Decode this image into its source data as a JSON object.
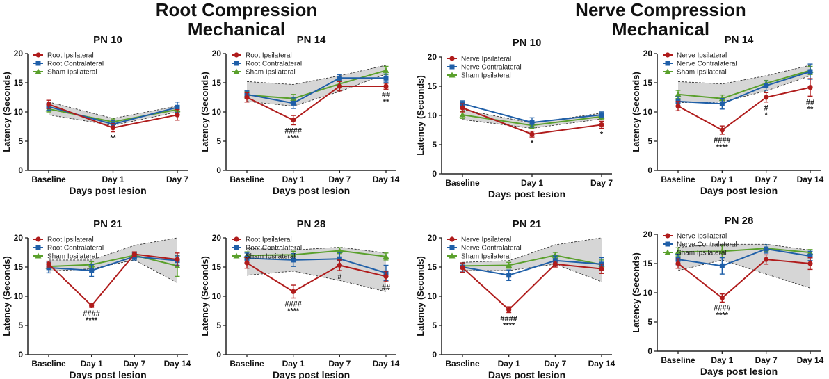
{
  "colors": {
    "root_ipsi": "#b01c1c",
    "contra": "#1f5fa8",
    "sham": "#5aa02c",
    "band": "#d6d6d6",
    "axis": "#222222"
  },
  "section_titles": {
    "left": [
      "Root Compression",
      "Mechanical"
    ],
    "right": [
      "Nerve Compression",
      "Mechanical"
    ]
  },
  "chart_data": [
    {
      "id": "root-pn10",
      "type": "line",
      "title": "PN 10",
      "xlabel": "Days post lesion",
      "ylabel": "Latency (Seconds)",
      "ylim": [
        0,
        20
      ],
      "yticks": [
        0,
        5,
        10,
        15,
        20
      ],
      "categories": [
        "Baseline",
        "Day 1",
        "Day 7"
      ],
      "legend_position": "top-left",
      "series": [
        {
          "name": "Root Ipsilateral",
          "values": [
            11.3,
            7.3,
            9.5
          ],
          "err": [
            0.7,
            0.7,
            0.9
          ]
        },
        {
          "name": "Root Contralateral",
          "values": [
            10.9,
            7.9,
            10.8
          ],
          "err": [
            0.6,
            0.6,
            0.9
          ]
        },
        {
          "name": "Sham Ipsilateral",
          "values": [
            10.5,
            8.3,
            10.4
          ],
          "err": [
            0.5,
            0.5,
            0.5
          ]
        }
      ],
      "band": {
        "upper": [
          11.7,
          8.9,
          11.0
        ],
        "lower": [
          9.5,
          7.7,
          10.0
        ]
      },
      "annotations": [
        {
          "cat": 1,
          "lines": [
            "**"
          ]
        }
      ]
    },
    {
      "id": "root-pn14",
      "type": "line",
      "title": "PN 14",
      "xlabel": "Days post lesion",
      "ylabel": "Latency (Seconds)",
      "ylim": [
        0,
        20
      ],
      "yticks": [
        0,
        5,
        10,
        15,
        20
      ],
      "categories": [
        "Baseline",
        "Day 1",
        "Day 7",
        "Day 14"
      ],
      "legend_position": "top-left",
      "series": [
        {
          "name": "Root Ipsilateral",
          "values": [
            12.5,
            8.6,
            14.4,
            14.4
          ],
          "err": [
            0.8,
            0.8,
            0.8,
            0.5
          ]
        },
        {
          "name": "Root Contralateral",
          "values": [
            13.0,
            11.5,
            15.8,
            15.8
          ],
          "err": [
            0.6,
            0.9,
            0.6,
            0.7
          ]
        },
        {
          "name": "Sham Ipsilateral",
          "values": [
            12.9,
            12.3,
            14.8,
            17.1
          ],
          "err": [
            0.6,
            0.7,
            0.6,
            0.7
          ]
        }
      ],
      "band": {
        "upper": [
          15.2,
          14.7,
          16.2,
          18.0
        ],
        "lower": [
          11.8,
          11.0,
          13.5,
          16.5
        ]
      },
      "annotations": [
        {
          "cat": 1,
          "lines": [
            "####",
            "****"
          ]
        },
        {
          "cat": 3,
          "lines": [
            "##",
            "**"
          ]
        }
      ]
    },
    {
      "id": "root-pn21",
      "type": "line",
      "title": "PN 21",
      "xlabel": "Days post lesion",
      "ylabel": "Latency (Seconds)",
      "ylim": [
        0,
        20
      ],
      "yticks": [
        0,
        5,
        10,
        15,
        20
      ],
      "categories": [
        "Baseline",
        "Day 1",
        "Day 7",
        "Day 14"
      ],
      "legend_position": "top-left",
      "series": [
        {
          "name": "Root Ipsilateral",
          "values": [
            15.5,
            8.4,
            17.2,
            16.3
          ],
          "err": [
            0.5,
            0.3,
            0.4,
            1.1
          ]
        },
        {
          "name": "Root Contralateral",
          "values": [
            14.9,
            14.4,
            16.8,
            16.1
          ],
          "err": [
            0.9,
            1.0,
            0.6,
            0.8
          ]
        },
        {
          "name": "Sham Ipsilateral",
          "values": [
            15.1,
            15.4,
            17.0,
            15.2
          ],
          "err": [
            0.5,
            0.5,
            0.4,
            1.8
          ]
        }
      ],
      "band": {
        "upper": [
          16.2,
          16.2,
          18.7,
          20.0
        ],
        "lower": [
          14.3,
          14.7,
          16.2,
          12.3
        ]
      },
      "annotations": [
        {
          "cat": 1,
          "lines": [
            "####",
            "****"
          ]
        }
      ]
    },
    {
      "id": "root-pn28",
      "type": "line",
      "title": "PN 28",
      "xlabel": "Days post lesion",
      "ylabel": "Latency (Seconds)",
      "ylim": [
        0,
        20
      ],
      "yticks": [
        0,
        5,
        10,
        15,
        20
      ],
      "categories": [
        "Baseline",
        "Day 1",
        "Day 7",
        "Day 14"
      ],
      "legend_position": "top-left",
      "series": [
        {
          "name": "Root Ipsilateral",
          "values": [
            15.7,
            10.8,
            15.3,
            13.4
          ],
          "err": [
            0.9,
            1.1,
            0.9,
            0.9
          ]
        },
        {
          "name": "Root Contralateral",
          "values": [
            16.5,
            16.2,
            16.4,
            14.0
          ],
          "err": [
            0.9,
            1.1,
            1.1,
            1.3
          ]
        },
        {
          "name": "Sham Ipsilateral",
          "values": [
            17.0,
            17.1,
            17.8,
            16.8
          ],
          "err": [
            0.6,
            0.6,
            0.5,
            0.6
          ]
        }
      ],
      "band": {
        "upper": [
          18.2,
          17.9,
          18.4,
          17.4
        ],
        "lower": [
          13.6,
          14.3,
          12.7,
          10.8
        ]
      },
      "annotations": [
        {
          "cat": 1,
          "lines": [
            "####",
            "****"
          ]
        },
        {
          "cat": 2,
          "lines": [
            "#"
          ]
        },
        {
          "cat": 3,
          "lines": [
            "##"
          ]
        }
      ]
    },
    {
      "id": "nerve-pn10",
      "type": "line",
      "title": "PN 10",
      "xlabel": "Days post lesion",
      "ylabel": "Latency (Seconds)",
      "ylim": [
        0,
        20
      ],
      "yticks": [
        0,
        5,
        10,
        15,
        20
      ],
      "categories": [
        "Baseline",
        "Day 1",
        "Day 7"
      ],
      "legend_position": "top-left",
      "series": [
        {
          "name": "Nerve Ipsilateral",
          "values": [
            11.3,
            6.8,
            8.4
          ],
          "err": [
            0.7,
            0.5,
            0.6
          ]
        },
        {
          "name": "Nerve  Contralateral",
          "values": [
            12.0,
            8.8,
            10.1
          ],
          "err": [
            0.5,
            0.8,
            0.5
          ]
        },
        {
          "name": "Sham Ipsilateral",
          "values": [
            10.1,
            8.3,
            9.8
          ],
          "err": [
            0.6,
            0.5,
            0.5
          ]
        }
      ],
      "band": {
        "upper": [
          11.0,
          8.7,
          10.4
        ],
        "lower": [
          9.3,
          7.8,
          9.4
        ]
      },
      "annotations": [
        {
          "cat": 1,
          "lines": [
            "*"
          ]
        },
        {
          "cat": 2,
          "lines": [
            "*"
          ]
        }
      ]
    },
    {
      "id": "nerve-pn14",
      "type": "line",
      "title": "PN 14",
      "xlabel": "Days post lesion",
      "ylabel": "Latency (Seconds)",
      "ylim": [
        0,
        20
      ],
      "yticks": [
        0,
        5,
        10,
        15,
        20
      ],
      "categories": [
        "Baseline",
        "Day 1",
        "Day 7",
        "Day 14"
      ],
      "legend_position": "top-left",
      "series": [
        {
          "name": "Nerve Ipsilateral",
          "values": [
            11.0,
            6.9,
            12.5,
            14.2
          ],
          "err": [
            0.8,
            0.7,
            0.8,
            1.5
          ]
        },
        {
          "name": "Nerve  Contralateral",
          "values": [
            11.8,
            11.4,
            14.5,
            16.9
          ],
          "err": [
            0.8,
            0.9,
            0.8,
            1.3
          ]
        },
        {
          "name": "Sham Ipsilateral",
          "values": [
            13.0,
            12.3,
            14.9,
            17.1
          ],
          "err": [
            0.7,
            0.6,
            0.5,
            0.7
          ]
        }
      ],
      "band": {
        "upper": [
          15.2,
          14.8,
          16.2,
          18.0
        ],
        "lower": [
          11.6,
          11.7,
          13.6,
          16.2
        ]
      },
      "annotations": [
        {
          "cat": 1,
          "lines": [
            "####",
            "****"
          ]
        },
        {
          "cat": 2,
          "lines": [
            "#",
            "*"
          ]
        },
        {
          "cat": 3,
          "lines": [
            "##",
            "**"
          ]
        }
      ]
    },
    {
      "id": "nerve-pn21",
      "type": "line",
      "title": "PN 21",
      "xlabel": "Days post lesion",
      "ylabel": "Latency (Seconds)",
      "ylim": [
        0,
        20
      ],
      "yticks": [
        0,
        5,
        10,
        15,
        20
      ],
      "categories": [
        "Baseline",
        "Day 1",
        "Day 7",
        "Day 14"
      ],
      "legend_position": "top-left",
      "series": [
        {
          "name": "Nerve Ipsilateral",
          "values": [
            14.9,
            7.7,
            15.5,
            14.7
          ],
          "err": [
            0.8,
            0.5,
            0.5,
            0.8
          ]
        },
        {
          "name": "Nerve  Contralateral",
          "values": [
            15.0,
            13.6,
            16.1,
            15.5
          ],
          "err": [
            0.7,
            0.9,
            0.8,
            1.1
          ]
        },
        {
          "name": "Sham Ipsilateral",
          "values": [
            15.2,
            15.3,
            17.0,
            15.4
          ],
          "err": [
            0.5,
            0.5,
            0.5,
            0.8
          ]
        }
      ],
      "band": {
        "upper": [
          15.8,
          16.1,
          18.8,
          20.0
        ],
        "lower": [
          14.4,
          14.4,
          15.5,
          12.5
        ]
      },
      "annotations": [
        {
          "cat": 1,
          "lines": [
            "####",
            "****"
          ]
        }
      ]
    },
    {
      "id": "nerve-pn28",
      "type": "line",
      "title": "PN 28",
      "xlabel": "Days post lesion",
      "ylabel": "Latency (Seconds)",
      "ylim": [
        0,
        20
      ],
      "yticks": [
        0,
        5,
        10,
        15,
        20
      ],
      "categories": [
        "Baseline",
        "Day 1",
        "Day 7",
        "Day 14"
      ],
      "legend_position": "top-left",
      "series": [
        {
          "name": "Nerve Ipsilateral",
          "values": [
            15.0,
            9.1,
            15.7,
            15.0
          ],
          "err": [
            0.8,
            0.7,
            0.8,
            1.0
          ]
        },
        {
          "name": "Nerve  Contralateral",
          "values": [
            15.7,
            14.6,
            17.5,
            16.3
          ],
          "err": [
            0.9,
            1.4,
            0.7,
            0.8
          ]
        },
        {
          "name": "Sham Ipsilateral",
          "values": [
            17.0,
            17.1,
            17.6,
            16.9
          ],
          "err": [
            0.7,
            1.0,
            0.6,
            0.5
          ]
        }
      ],
      "band": {
        "upper": [
          17.8,
          18.3,
          18.3,
          17.3
        ],
        "lower": [
          13.8,
          15.6,
          13.2,
          10.8
        ]
      },
      "annotations": [
        {
          "cat": 1,
          "lines": [
            "####",
            "****"
          ]
        }
      ]
    }
  ]
}
